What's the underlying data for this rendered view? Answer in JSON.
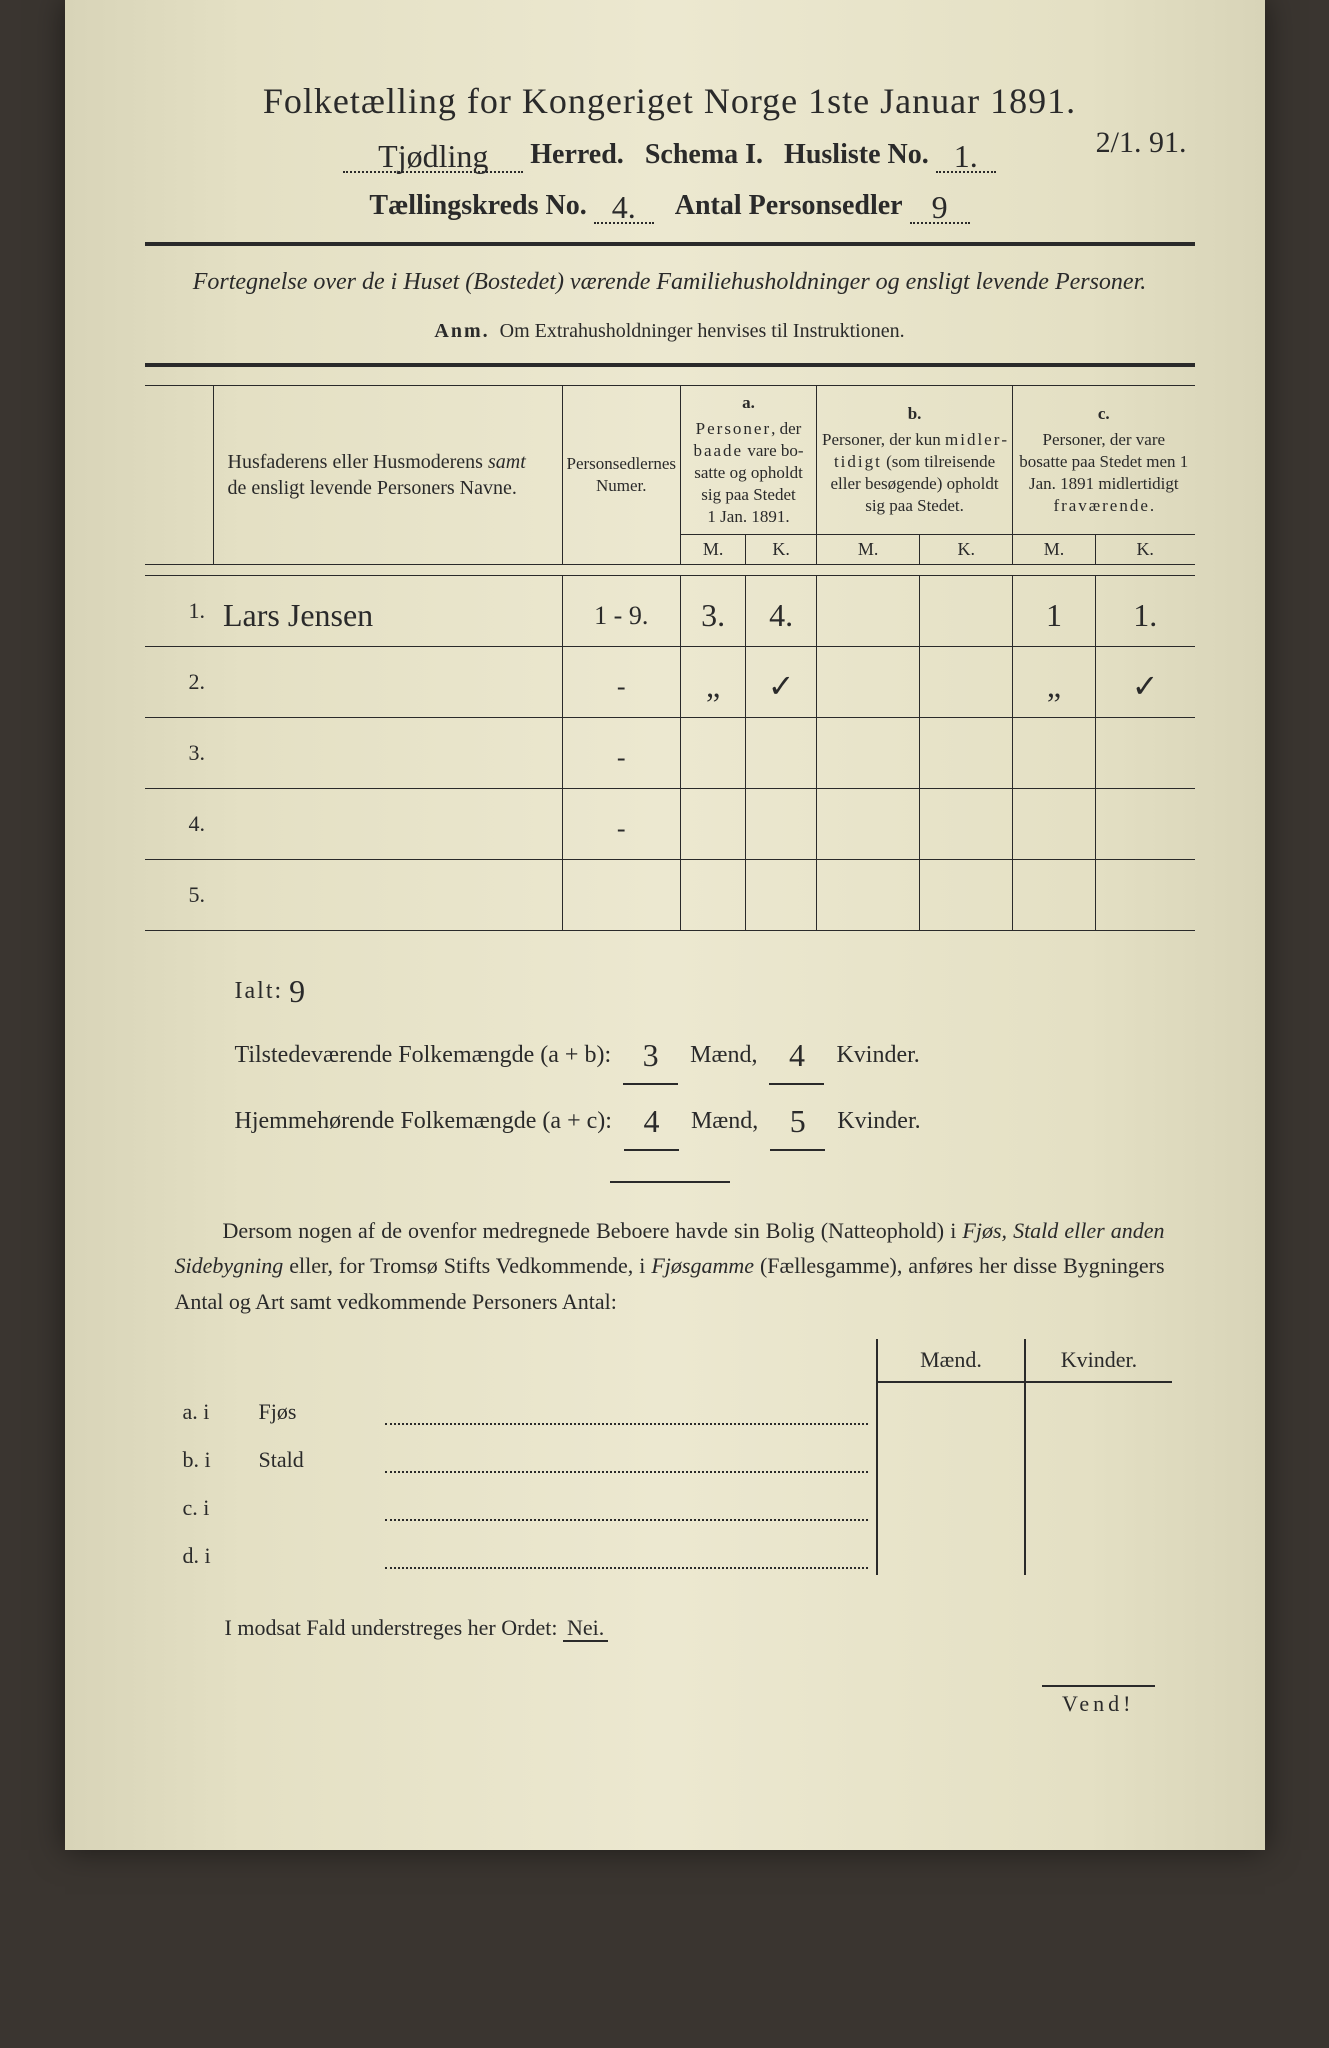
{
  "title": "Folketælling for Kongeriget Norge 1ste Januar 1891.",
  "header": {
    "herred_value": "Tjødling",
    "herred_label": "Herred.",
    "schema_label": "Schema I.",
    "husliste_label": "Husliste No.",
    "husliste_no": "1.",
    "date_margin": "2/1. 91.",
    "kreds_label": "Tællingskreds No.",
    "kreds_no": "4.",
    "antal_label": "Antal Personsedler",
    "antal_no": "9"
  },
  "intro": "Fortegnelse over de i Huset (Bostedet) værende Familiehusholdninger og ensligt levende Personer.",
  "anm": {
    "label": "Anm.",
    "text": "Om Extrahusholdninger henvises til Instruktionen."
  },
  "table": {
    "col_name": "Husfaderens eller Husmoderens samt de ensligt levende Personers Navne.",
    "col_numer": "Personsedlernes Numer.",
    "col_a_head": "a.",
    "col_a": "Personer, der baade vare bosatte og opholdt sig paa Stedet 1 Jan. 1891.",
    "col_b_head": "b.",
    "col_b": "Personer, der kun midlertidigt (som tilreisende eller besøgende) opholdt sig paa Stedet.",
    "col_c_head": "c.",
    "col_c": "Personer, der vare bosatte paa Stedet men 1 Jan. 1891 midlertidigt fraværende.",
    "mk_m": "M.",
    "mk_k": "K.",
    "rows": [
      {
        "n": "1.",
        "name": "Lars Jensen",
        "numer": "1 - 9.",
        "am": "3.",
        "ak": "4.",
        "bm": "",
        "bk": "",
        "cm": "1",
        "ck": "1."
      },
      {
        "n": "2.",
        "name": "",
        "numer": "-",
        "am": "„",
        "ak": "✓",
        "bm": "",
        "bk": "",
        "cm": "„",
        "ck": "✓"
      },
      {
        "n": "3.",
        "name": "",
        "numer": "-",
        "am": "",
        "ak": "",
        "bm": "",
        "bk": "",
        "cm": "",
        "ck": ""
      },
      {
        "n": "4.",
        "name": "",
        "numer": "-",
        "am": "",
        "ak": "",
        "bm": "",
        "bk": "",
        "cm": "",
        "ck": ""
      },
      {
        "n": "5.",
        "name": "",
        "numer": "",
        "am": "",
        "ak": "",
        "bm": "",
        "bk": "",
        "cm": "",
        "ck": ""
      }
    ]
  },
  "summary": {
    "ialt_label": "Ialt:",
    "ialt_value": "9",
    "line1_label": "Tilstedeværende Folkemængde (a + b):",
    "line1_m": "3",
    "line1_k": "4",
    "line2_label": "Hjemmehørende Folkemængde (a + c):",
    "line2_m": "4",
    "line2_k": "5",
    "maend": "Mænd,",
    "kvinder": "Kvinder."
  },
  "para": "Dersom nogen af de ovenfor medregnede Beboere havde sin Bolig (Natteophold) i Fjøs, Stald eller anden Sidebygning eller, for Tromsø Stifts Vedkommende, i Fjøsgamme (Fællesgamme), anføres her disse Bygningers Antal og Art samt vedkommende Personers Antal:",
  "buildings": {
    "maend": "Mænd.",
    "kvinder": "Kvinder.",
    "rows": [
      {
        "label": "a.  i",
        "type": "Fjøs"
      },
      {
        "label": "b.  i",
        "type": "Stald"
      },
      {
        "label": "c.  i",
        "type": ""
      },
      {
        "label": "d.  i",
        "type": ""
      }
    ]
  },
  "modsat": {
    "text_before": "I modsat Fald understreges her Ordet:",
    "nei": "Nei."
  },
  "vend": "Vend!"
}
